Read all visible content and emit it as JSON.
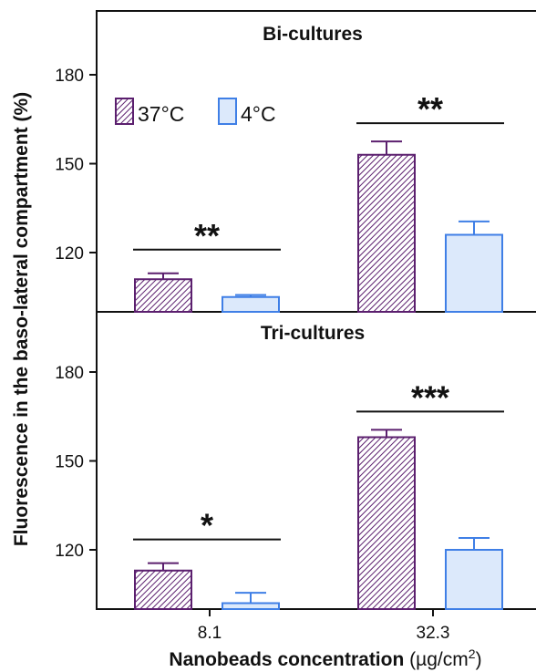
{
  "colors": {
    "warm": "#5b1f6e",
    "cold": "#3f7fe6",
    "cold_fill": "#dce9fb"
  },
  "chart_data": {
    "type": "bar",
    "categories": [
      "8.1",
      "32.3"
    ],
    "xlabel_bold": "Nanobeads concentration",
    "xlabel_unit_pre": "(µg/cm",
    "xlabel_unit_sup": "2",
    "xlabel_unit_post": ")",
    "ylabel": "Fluorescence in the baso-lateral compartment (%)",
    "legend": [
      {
        "name": "37°C",
        "hatched": true
      },
      {
        "name": "4°C",
        "hatched": false
      }
    ],
    "panels": [
      {
        "title": "Bi-cultures",
        "ylim": [
          100,
          200
        ],
        "yticks": [
          120,
          150,
          180
        ],
        "series": [
          {
            "name": "37°C",
            "values": [
              111,
              153
            ],
            "errors": [
              2,
              4.5
            ]
          },
          {
            "name": "4°C",
            "values": [
              105,
              126
            ],
            "errors": [
              0.7,
              4.5
            ]
          }
        ],
        "significance": [
          "**",
          "**"
        ]
      },
      {
        "title": "Tri-cultures",
        "ylim": [
          100,
          200
        ],
        "yticks": [
          120,
          150,
          180
        ],
        "series": [
          {
            "name": "37°C",
            "values": [
              113,
              158
            ],
            "errors": [
              2.5,
              2.5
            ]
          },
          {
            "name": "4°C",
            "values": [
              102,
              120
            ],
            "errors": [
              3.5,
              4
            ]
          }
        ],
        "significance": [
          "*",
          "***"
        ]
      }
    ]
  }
}
